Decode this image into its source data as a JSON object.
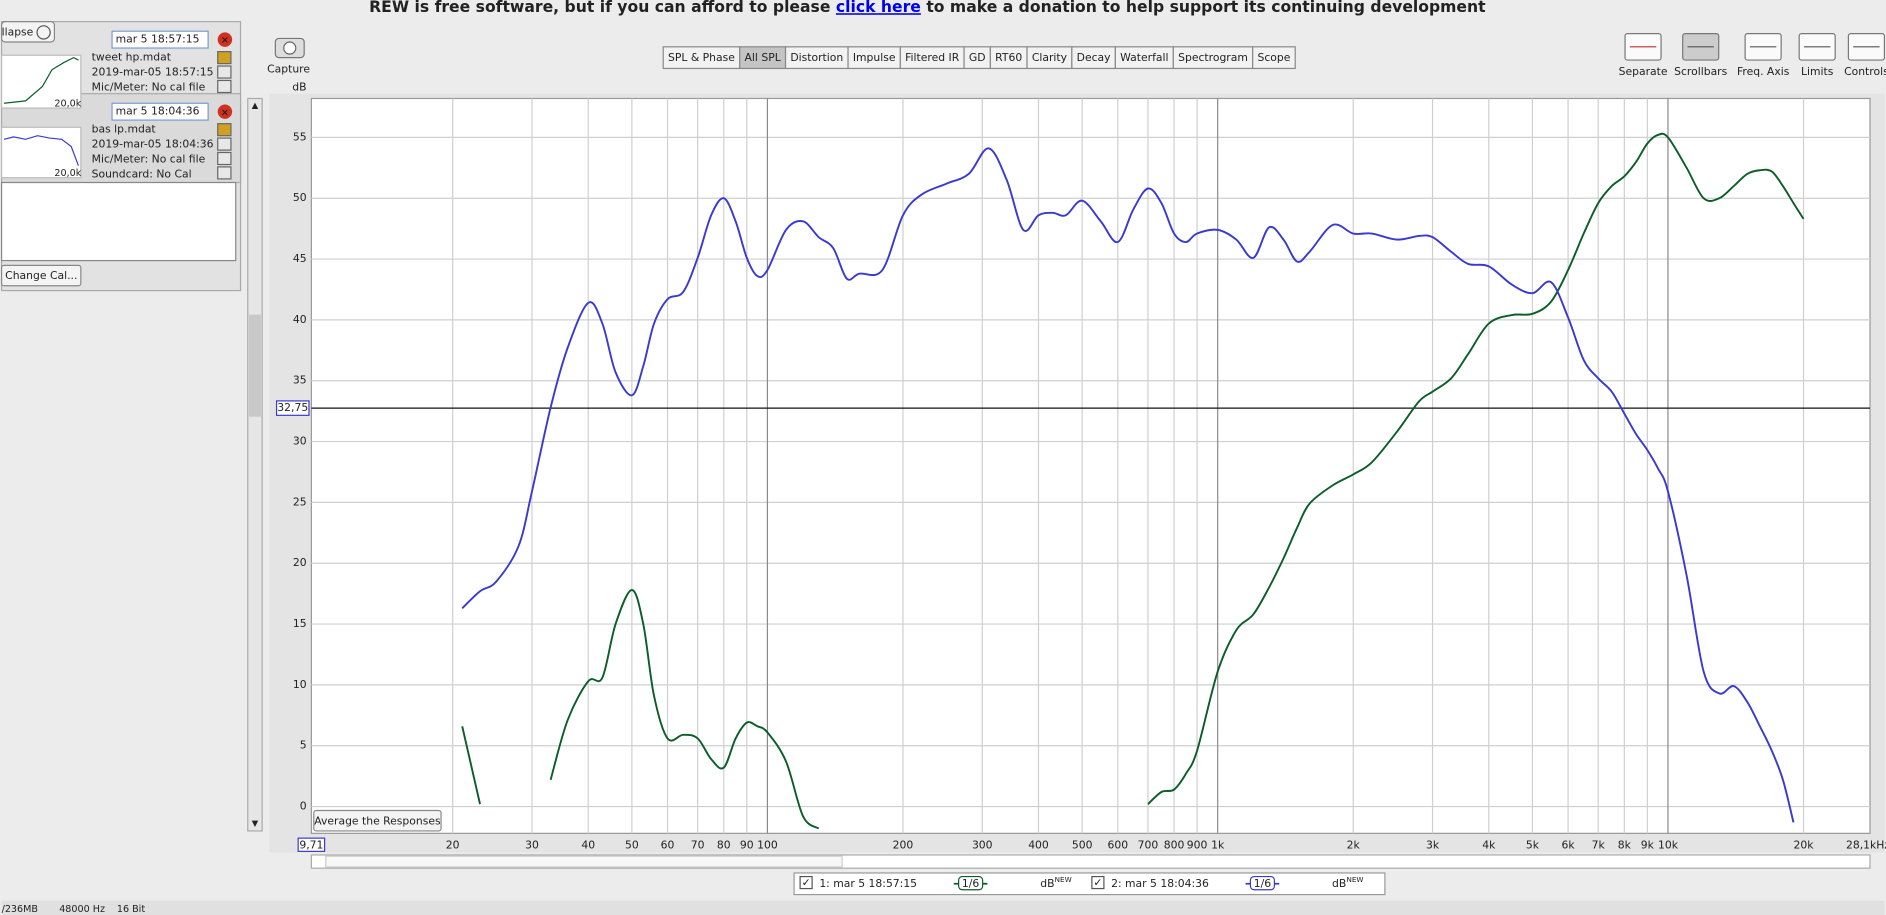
{
  "banner": {
    "text": "REW is free software, but if you can afford to please",
    "link": "click here",
    "rest": "to make a donation to help support its continuing development"
  },
  "collapse": "llapse",
  "measurements": [
    {
      "title": "mar 5 18:57:15",
      "file": "tweet hp.mdat",
      "date": "2019-mar-05 18:57:15",
      "mic": "Mic/Meter: No cal file",
      "thumb_label": "20,0k"
    },
    {
      "title": "mar 5 18:04:36",
      "file": "bas lp.mdat",
      "date": "2019-mar-05 18:04:36",
      "mic": "Mic/Meter: No cal file",
      "soundcard": "Soundcard: No Cal",
      "thumb_label": "20,0k"
    }
  ],
  "change_cal": "Change Cal...",
  "capture": "Capture",
  "tabs": [
    "SPL & Phase",
    "All SPL",
    "Distortion",
    "Impulse",
    "Filtered IR",
    "GD",
    "RT60",
    "Clarity",
    "Decay",
    "Waterfall",
    "Spectrogram",
    "Scope"
  ],
  "active_tab": "All SPL",
  "tools": [
    "Separate",
    "Scrollbars",
    "Freq. Axis",
    "Limits",
    "Controls"
  ],
  "average_button": "Average the Responses",
  "status": [
    "/236MB",
    "48000 Hz",
    "16 Bit"
  ],
  "chart_data": {
    "type": "line",
    "y_label": "dB",
    "xscale": "log",
    "xlim": [
      9.71,
      28100
    ],
    "ylim": [
      -2.2,
      58.2
    ],
    "yticks": [
      0,
      5,
      10,
      15,
      20,
      25,
      30,
      35,
      40,
      45,
      50,
      55
    ],
    "xticks": [
      {
        "value": 9.71,
        "label": "9,71"
      },
      20,
      30,
      40,
      50,
      60,
      70,
      80,
      90,
      100,
      200,
      300,
      400,
      500,
      600,
      700,
      800,
      900,
      {
        "value": 1000,
        "label": "1k"
      },
      {
        "value": 2000,
        "label": "2k"
      },
      {
        "value": 3000,
        "label": "3k"
      },
      {
        "value": 4000,
        "label": "4k"
      },
      {
        "value": 5000,
        "label": "5k"
      },
      {
        "value": 6000,
        "label": "6k"
      },
      {
        "value": 7000,
        "label": "7k"
      },
      {
        "value": 8000,
        "label": "8k"
      },
      {
        "value": 9000,
        "label": "9k"
      },
      {
        "value": 10000,
        "label": "10k"
      },
      {
        "value": 20000,
        "label": "20k"
      },
      {
        "value": 28100,
        "label": "28,1kHz"
      }
    ],
    "grid": true,
    "cursor": {
      "value": 32.75,
      "label": "32,75"
    },
    "x": [
      21,
      23,
      25,
      28,
      30,
      33,
      36,
      40,
      43,
      46,
      50,
      53,
      56,
      60,
      65,
      70,
      75,
      80,
      85,
      90,
      95,
      100,
      110,
      120,
      130,
      140,
      150,
      160,
      180,
      200,
      220,
      250,
      280,
      310,
      340,
      370,
      400,
      430,
      460,
      500,
      550,
      600,
      650,
      700,
      750,
      800,
      850,
      900,
      1000,
      1100,
      1200,
      1300,
      1400,
      1500,
      1600,
      1800,
      2000,
      2200,
      2500,
      2800,
      3000,
      3300,
      3600,
      4000,
      4500,
      5000,
      5500,
      6000,
      6500,
      7000,
      7500,
      8000,
      8500,
      9000,
      9500,
      10000,
      11000,
      12000,
      13000,
      14000,
      15000,
      16000,
      17000,
      18000,
      19000,
      20000
    ],
    "series": [
      {
        "name": "1: mar 5 18:57:15",
        "color": "#0b5e2a",
        "smoothing": "1/6",
        "unit": "dB",
        "badge": "NEW",
        "values": [
          6.6,
          0.2,
          null,
          null,
          null,
          2.2,
          7.1,
          10.3,
          10.6,
          15,
          17.8,
          15,
          9.1,
          5.6,
          5.9,
          5.6,
          3.9,
          3.2,
          5.6,
          6.9,
          6.6,
          6.1,
          3.7,
          -0.8,
          -1.8,
          null,
          null,
          null,
          null,
          null,
          null,
          null,
          null,
          null,
          null,
          null,
          null,
          null,
          null,
          null,
          null,
          null,
          null,
          0.2,
          1.2,
          1.4,
          2.7,
          4.6,
          11.1,
          14.5,
          15.8,
          18,
          20.4,
          22.9,
          24.9,
          26.4,
          27.3,
          28.3,
          30.8,
          33.3,
          34.1,
          35.2,
          37.2,
          39.7,
          40.4,
          40.5,
          41.5,
          44.1,
          47.1,
          49.6,
          51,
          51.8,
          53,
          54.5,
          55.2,
          55,
          52.5,
          50,
          50,
          51,
          52,
          52.3,
          52.2,
          51,
          49.6,
          48.3
        ]
      },
      {
        "name": "2: mar 5 18:04:36",
        "color": "#3a3ad0",
        "smoothing": "1/6",
        "unit": "dB",
        "badge": "NEW",
        "values": [
          16.3,
          17.7,
          18.5,
          21.4,
          25.9,
          32.8,
          37.7,
          41.4,
          39.7,
          35.7,
          33.8,
          36.2,
          39.7,
          41.7,
          42.3,
          45.1,
          48.6,
          50,
          48.1,
          45.1,
          43.6,
          44.1,
          47.4,
          48.1,
          46.8,
          45.9,
          43.4,
          43.8,
          44.1,
          48.6,
          50.3,
          51.2,
          52,
          54.1,
          51.5,
          47.4,
          48.6,
          48.8,
          48.6,
          49.8,
          48.1,
          46.4,
          49.1,
          50.8,
          49.6,
          47.1,
          46.4,
          47.1,
          47.4,
          46.6,
          45.1,
          47.6,
          46.6,
          44.8,
          45.6,
          47.8,
          47.1,
          47.1,
          46.6,
          46.9,
          46.8,
          45.6,
          44.6,
          44.4,
          42.9,
          42.2,
          43.1,
          40.2,
          36.7,
          35.2,
          34.1,
          32.3,
          30.6,
          29.3,
          27.8,
          25.9,
          19,
          11.1,
          9.3,
          9.9,
          8.6,
          6.6,
          4.6,
          2.2,
          -1.3,
          null
        ]
      }
    ]
  }
}
